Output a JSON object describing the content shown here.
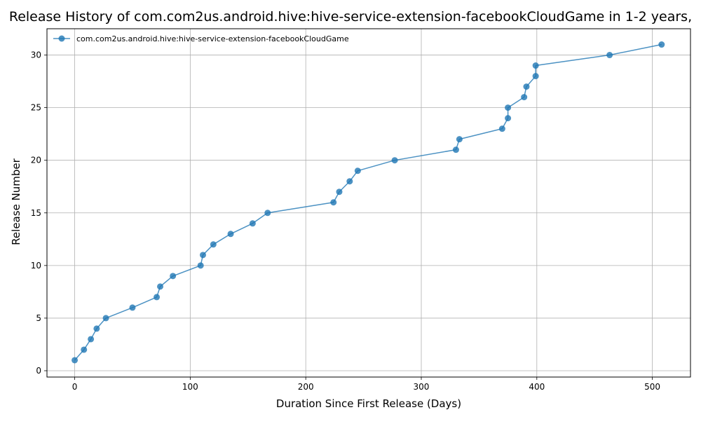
{
  "chart_data": {
    "type": "line",
    "title": "Release History of com.com2us.android.hive:hive-service-extension-facebookCloudGame in 1-2 years,",
    "xlabel": "Duration Since First Release (Days)",
    "ylabel": "Release Number",
    "xlim": [
      -24,
      533
    ],
    "ylim": [
      -0.6,
      32.5
    ],
    "xticks": [
      0,
      100,
      200,
      300,
      400,
      500
    ],
    "yticks": [
      0,
      5,
      10,
      15,
      20,
      25,
      30
    ],
    "grid": true,
    "legend_position": "top-left",
    "series": [
      {
        "name": "com.com2us.android.hive:hive-service-extension-facebookCloudGame",
        "color": "#1f77b4",
        "marker": "circle",
        "points": [
          {
            "x": 0,
            "y": 1
          },
          {
            "x": 8,
            "y": 2
          },
          {
            "x": 14,
            "y": 3
          },
          {
            "x": 19,
            "y": 4
          },
          {
            "x": 27,
            "y": 5
          },
          {
            "x": 50,
            "y": 6
          },
          {
            "x": 71,
            "y": 7
          },
          {
            "x": 74,
            "y": 8
          },
          {
            "x": 85,
            "y": 9
          },
          {
            "x": 109,
            "y": 10
          },
          {
            "x": 111,
            "y": 11
          },
          {
            "x": 120,
            "y": 12
          },
          {
            "x": 135,
            "y": 13
          },
          {
            "x": 154,
            "y": 14
          },
          {
            "x": 167,
            "y": 15
          },
          {
            "x": 224,
            "y": 16
          },
          {
            "x": 229,
            "y": 17
          },
          {
            "x": 238,
            "y": 18
          },
          {
            "x": 245,
            "y": 19
          },
          {
            "x": 277,
            "y": 20
          },
          {
            "x": 330,
            "y": 21
          },
          {
            "x": 333,
            "y": 22
          },
          {
            "x": 370,
            "y": 23
          },
          {
            "x": 375,
            "y": 24
          },
          {
            "x": 375,
            "y": 25
          },
          {
            "x": 389,
            "y": 26
          },
          {
            "x": 391,
            "y": 27
          },
          {
            "x": 399,
            "y": 28
          },
          {
            "x": 399,
            "y": 29
          },
          {
            "x": 463,
            "y": 30
          },
          {
            "x": 508,
            "y": 31
          }
        ]
      }
    ]
  }
}
